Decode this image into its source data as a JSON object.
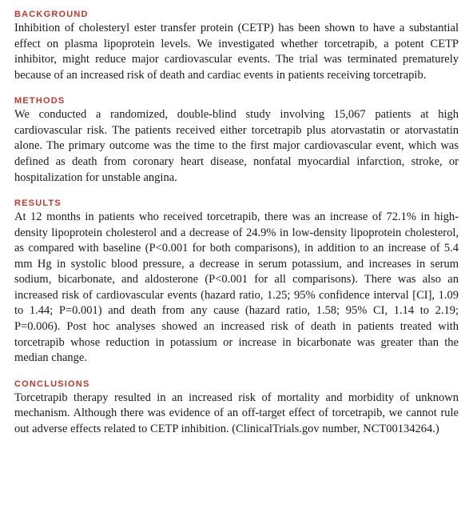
{
  "sections": {
    "background": {
      "heading": "BACKGROUND",
      "body": "Inhibition of cholesteryl ester transfer protein (CETP) has been shown to have a substantial effect on plasma lipoprotein levels. We investigated whether torcetrapib, a potent CETP inhibitor, might reduce major cardiovascular events. The trial was terminated prematurely because of an increased risk of death and cardiac events in patients receiving torcetrapib."
    },
    "methods": {
      "heading": "METHODS",
      "body": "We conducted a randomized, double-blind study involving 15,067 patients at high cardiovascular risk. The patients received either torcetrapib plus atorvastatin or atorvastatin alone. The primary outcome was the time to the first major cardiovascular event, which was defined as death from coronary heart disease, nonfatal myocardial infarction, stroke, or hospitalization for unstable angina."
    },
    "results": {
      "heading": "RESULTS",
      "body": "At 12 months in patients who received torcetrapib, there was an increase of 72.1% in high-density lipoprotein cholesterol and a decrease of 24.9% in low-density lipoprotein cholesterol, as compared with baseline (P<0.001 for both comparisons), in addition to an increase of 5.4 mm Hg in systolic blood pressure, a decrease in serum potassium, and increases in serum sodium, bicarbonate, and aldosterone (P<0.001 for all comparisons). There was also an increased risk of cardiovascular events (hazard ratio, 1.25; 95% confidence interval [CI], 1.09 to 1.44; P=0.001) and death from any cause (hazard ratio, 1.58; 95% CI, 1.14 to 2.19; P=0.006). Post hoc analyses showed an increased risk of death in patients treated with torcetrapib whose reduction in potassium or increase in bicarbonate was greater than the median change."
    },
    "conclusions": {
      "heading": "CONCLUSIONS",
      "body": "Torcetrapib therapy resulted in an increased risk of mortality and morbidity of unknown mechanism. Although there was evidence of an off-target effect of torcetrapib, we cannot rule out adverse effects related to CETP inhibition. (ClinicalTrials.gov number, NCT00134264.)"
    }
  }
}
